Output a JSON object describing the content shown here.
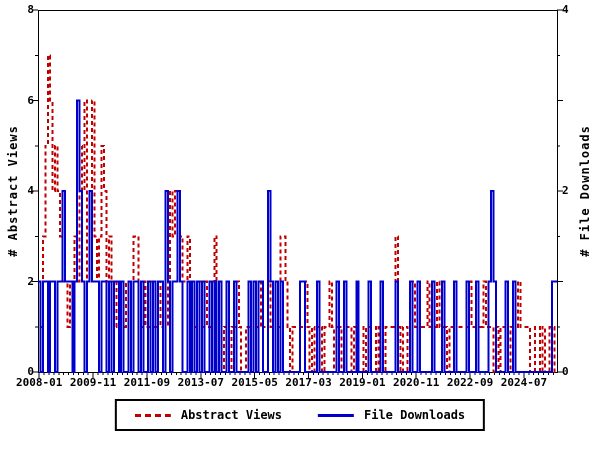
{
  "legend": {
    "items": [
      {
        "label": "Abstract Views",
        "color": "#c00000",
        "dash": true
      },
      {
        "label": "File Downloads",
        "color": "#0000cc",
        "dash": false
      }
    ]
  },
  "chart_data": {
    "type": "line",
    "style": "histeps-step-line",
    "title": "",
    "x_unit": "month",
    "x_start": "2008-01",
    "x_end": "2025-08",
    "xtick_interval_months": 22,
    "xtick_labels": [
      "2008-01",
      "2009-11",
      "2011-09",
      "2013-07",
      "2015-05",
      "2017-03",
      "2019-01",
      "2020-11",
      "2022-09",
      "2024-07"
    ],
    "y_left": {
      "label": "# Abstract Views",
      "range": [
        0,
        8
      ],
      "ticks": [
        0,
        2,
        4,
        6,
        8
      ]
    },
    "y_right": {
      "label": "# File Downloads",
      "range": [
        0,
        4
      ],
      "ticks": [
        0,
        2,
        4
      ]
    },
    "grid": false,
    "legend_position": "bottom-center",
    "series": [
      {
        "name": "Abstract Views",
        "axis": "left",
        "color": "#c00000",
        "line": "dashed",
        "values": [
          2,
          1,
          3,
          5,
          7,
          6,
          4,
          5,
          4,
          3,
          2,
          2,
          1,
          2,
          2,
          3,
          2,
          5,
          4,
          6,
          2,
          3,
          6,
          3,
          2,
          3,
          5,
          4,
          2,
          3,
          2,
          1,
          2,
          1,
          2,
          1,
          2,
          1,
          2,
          3,
          3,
          2,
          1,
          2,
          1,
          1,
          2,
          1,
          1,
          2,
          1,
          2,
          1,
          2,
          4,
          3,
          4,
          2,
          3,
          2,
          2,
          3,
          1,
          2,
          1,
          1,
          2,
          1,
          2,
          1,
          1,
          2,
          3,
          2,
          1,
          0,
          1,
          1,
          0,
          1,
          1,
          2,
          1,
          0,
          0,
          1,
          1,
          0,
          2,
          1,
          1,
          2,
          1,
          1,
          2,
          1,
          1,
          2,
          1,
          3,
          3,
          2,
          1,
          0,
          1,
          1,
          1,
          1,
          1,
          2,
          1,
          0,
          1,
          0,
          1,
          1,
          0,
          1,
          1,
          2,
          1,
          0,
          1,
          1,
          0,
          2,
          1,
          1,
          0,
          1,
          0,
          0,
          0,
          1,
          0,
          1,
          1,
          1,
          0,
          1,
          1,
          0,
          1,
          1,
          1,
          1,
          3,
          1,
          0,
          1,
          1,
          0,
          1,
          2,
          1,
          1,
          1,
          1,
          1,
          2,
          1,
          2,
          1,
          2,
          1,
          1,
          1,
          0,
          1,
          1,
          0,
          1,
          1,
          1,
          1,
          1,
          2,
          1,
          1,
          1,
          1,
          1,
          2,
          1,
          1,
          1,
          0,
          1,
          0,
          1,
          1,
          1,
          0,
          1,
          1,
          1,
          2,
          1,
          1,
          1,
          1,
          0,
          0,
          1,
          1,
          0,
          1,
          0,
          0,
          1,
          1,
          0
        ]
      },
      {
        "name": "File Downloads",
        "axis": "right",
        "color": "#0000cc",
        "line": "solid",
        "values": [
          1,
          0,
          1,
          1,
          0,
          1,
          1,
          0,
          1,
          1,
          2,
          1,
          1,
          1,
          0,
          1,
          3,
          2,
          1,
          0,
          1,
          2,
          1,
          1,
          1,
          0,
          1,
          1,
          0,
          1,
          0,
          1,
          1,
          0,
          1,
          0,
          0,
          1,
          0,
          1,
          1,
          0,
          1,
          0,
          0,
          1,
          0,
          1,
          0,
          1,
          1,
          0,
          2,
          1,
          0,
          1,
          1,
          2,
          1,
          0,
          0,
          1,
          0,
          1,
          0,
          1,
          0,
          1,
          0,
          0,
          1,
          0,
          1,
          0,
          1,
          0,
          0,
          1,
          0,
          0,
          1,
          0,
          0,
          0,
          0,
          0,
          1,
          0,
          1,
          0,
          1,
          1,
          0,
          0,
          2,
          1,
          0,
          1,
          0,
          1,
          0,
          0,
          0,
          0,
          0,
          0,
          0,
          1,
          1,
          0,
          0,
          0,
          0,
          0,
          1,
          0,
          0,
          0,
          0,
          0,
          0,
          0,
          1,
          0,
          0,
          1,
          0,
          0,
          0,
          0,
          1,
          0,
          0,
          0,
          0,
          1,
          0,
          0,
          0,
          0,
          1,
          0,
          0,
          0,
          0,
          0,
          1,
          0,
          0,
          0,
          0,
          0,
          1,
          0,
          0,
          1,
          0,
          0,
          0,
          0,
          0,
          1,
          0,
          0,
          0,
          1,
          0,
          0,
          0,
          0,
          1,
          0,
          0,
          0,
          0,
          1,
          0,
          0,
          0,
          1,
          0,
          0,
          0,
          0,
          1,
          2,
          1,
          0,
          0,
          0,
          0,
          1,
          0,
          0,
          1,
          0,
          0,
          0,
          0,
          0,
          0,
          0,
          0,
          0,
          0,
          0,
          0,
          0,
          0,
          0,
          1,
          1
        ]
      }
    ]
  }
}
